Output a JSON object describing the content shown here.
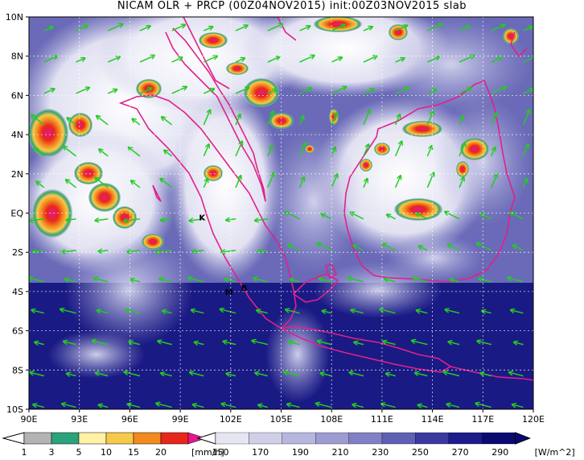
{
  "title": "NICAM OLR + PRCP (00Z04NOV2015) init:00Z03NOV2015 slab",
  "map": {
    "lat_ticks": [
      "10N",
      "8N",
      "6N",
      "4N",
      "2N",
      "EQ",
      "2S",
      "4S",
      "6S",
      "8S",
      "10S"
    ],
    "lon_ticks": [
      "90E",
      "93E",
      "96E",
      "99E",
      "102E",
      "105E",
      "108E",
      "111E",
      "114E",
      "117E",
      "120E"
    ],
    "lon_range": [
      90,
      120
    ],
    "lat_range": [
      -10,
      10
    ],
    "sites": [
      {
        "name": "K",
        "lon": 100.3,
        "lat": -0.2
      },
      {
        "name": "M",
        "lon": 101.9,
        "lat": -4.0
      },
      {
        "name": "B",
        "lon": 102.8,
        "lat": -3.8
      }
    ],
    "vector_color": "#22cc22",
    "coast_color": "#e0218a"
  },
  "legend_prcp": {
    "values": [
      "1",
      "3",
      "5",
      "10",
      "15",
      "20"
    ],
    "unit": "[mm/h]",
    "colors": [
      "#b4b4b4",
      "#2aa37a",
      "#fff2a6",
      "#f7c94a",
      "#f28a20",
      "#e8261c",
      "#e4188f"
    ]
  },
  "legend_olr": {
    "values": [
      "150",
      "170",
      "190",
      "210",
      "230",
      "250",
      "270",
      "290"
    ],
    "unit": "[W/m^2]",
    "colors": [
      "#ffffff",
      "#e6e6f2",
      "#cfcfe8",
      "#b6b6de",
      "#9c9cd2",
      "#8080c4",
      "#5f5fb4",
      "#3a3aa0",
      "#1c1c8a",
      "#0a0a72"
    ]
  }
}
